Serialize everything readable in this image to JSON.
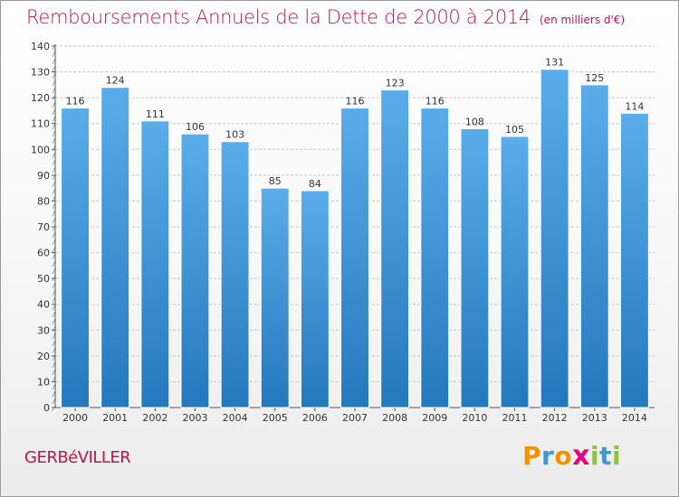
{
  "title": {
    "main": "Remboursements Annuels de la Dette de 2000 à 2014",
    "unit": "(en milliers d'€)"
  },
  "commune": "GERBéVILLER",
  "brand": {
    "letters": [
      "P",
      "r",
      "o",
      "x",
      "i",
      "t",
      "i"
    ],
    "colors": [
      "#f39200",
      "#3a9ad9",
      "#f39200",
      "#e6007e",
      "#8cc43f",
      "#3a9ad9",
      "#8cc43f"
    ]
  },
  "chart_data": {
    "type": "bar",
    "title": "Remboursements Annuels de la Dette de 2000 à 2014",
    "xlabel": "",
    "ylabel": "",
    "categories": [
      "2000",
      "2001",
      "2002",
      "2003",
      "2004",
      "2005",
      "2006",
      "2007",
      "2008",
      "2009",
      "2010",
      "2011",
      "2012",
      "2013",
      "2014"
    ],
    "values": [
      116,
      124,
      111,
      106,
      103,
      85,
      84,
      116,
      123,
      116,
      108,
      105,
      131,
      125,
      114
    ],
    "ylim": [
      0,
      140
    ],
    "yticks": [
      0,
      10,
      20,
      30,
      40,
      50,
      60,
      70,
      80,
      90,
      100,
      110,
      120,
      130,
      140
    ],
    "grid": true,
    "bar_color_top": "#5aadea",
    "bar_color_bottom": "#2478bd"
  }
}
